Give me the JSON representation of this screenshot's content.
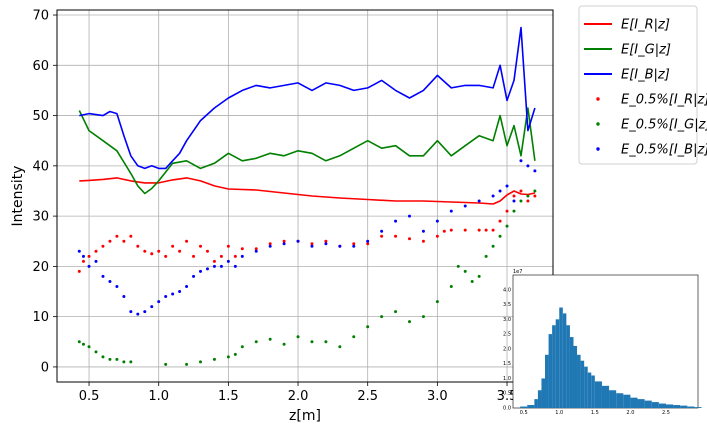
{
  "chart_data": {
    "type": "line",
    "xlabel": "z[m]",
    "ylabel": "Intensity",
    "xlim": [
      0.27,
      3.83
    ],
    "ylim": [
      -3,
      71
    ],
    "xticks": [
      "0.5",
      "1.0",
      "1.5",
      "2.0",
      "2.5",
      "3.0",
      "3.5"
    ],
    "yticks": [
      "0",
      "10",
      "20",
      "30",
      "40",
      "50",
      "60",
      "70"
    ],
    "grid": true,
    "legend_position": "outside-top-right",
    "colors": {
      "red": "#ff0000",
      "green": "#008000",
      "blue": "#0000ff",
      "grid": "#b0b0b0",
      "hist": "#1f77b4"
    },
    "series": [
      {
        "name": "E[I_R|z]",
        "kind": "line",
        "color": "#ff0000",
        "points": [
          [
            0.43,
            37.0
          ],
          [
            0.5,
            37.1
          ],
          [
            0.6,
            37.3
          ],
          [
            0.7,
            37.6
          ],
          [
            0.8,
            37.0
          ],
          [
            0.9,
            36.6
          ],
          [
            1.0,
            36.6
          ],
          [
            1.1,
            37.2
          ],
          [
            1.2,
            37.6
          ],
          [
            1.3,
            37.0
          ],
          [
            1.4,
            36.0
          ],
          [
            1.5,
            35.4
          ],
          [
            1.7,
            35.2
          ],
          [
            1.9,
            34.6
          ],
          [
            2.1,
            34.0
          ],
          [
            2.3,
            33.6
          ],
          [
            2.5,
            33.3
          ],
          [
            2.7,
            33.0
          ],
          [
            2.9,
            33.0
          ],
          [
            3.1,
            32.8
          ],
          [
            3.3,
            32.6
          ],
          [
            3.4,
            32.4
          ],
          [
            3.45,
            33.0
          ],
          [
            3.5,
            34.2
          ],
          [
            3.55,
            35.0
          ],
          [
            3.6,
            34.4
          ],
          [
            3.65,
            34.3
          ],
          [
            3.7,
            34.6
          ]
        ]
      },
      {
        "name": "E[I_G|z]",
        "kind": "line",
        "color": "#008000",
        "points": [
          [
            0.43,
            51.0
          ],
          [
            0.5,
            47.0
          ],
          [
            0.6,
            45.0
          ],
          [
            0.7,
            43.0
          ],
          [
            0.8,
            38.5
          ],
          [
            0.85,
            36.0
          ],
          [
            0.9,
            34.5
          ],
          [
            0.95,
            35.5
          ],
          [
            1.0,
            37.0
          ],
          [
            1.1,
            40.5
          ],
          [
            1.2,
            41.0
          ],
          [
            1.3,
            39.5
          ],
          [
            1.4,
            40.5
          ],
          [
            1.5,
            42.5
          ],
          [
            1.6,
            41.0
          ],
          [
            1.7,
            41.5
          ],
          [
            1.8,
            42.5
          ],
          [
            1.9,
            42.0
          ],
          [
            2.0,
            43.0
          ],
          [
            2.1,
            42.5
          ],
          [
            2.2,
            41.0
          ],
          [
            2.3,
            42.0
          ],
          [
            2.4,
            43.5
          ],
          [
            2.5,
            45.0
          ],
          [
            2.6,
            43.5
          ],
          [
            2.7,
            44.0
          ],
          [
            2.8,
            42.0
          ],
          [
            2.9,
            42.0
          ],
          [
            3.0,
            45.0
          ],
          [
            3.1,
            42.0
          ],
          [
            3.2,
            44.0
          ],
          [
            3.3,
            46.0
          ],
          [
            3.4,
            45.0
          ],
          [
            3.45,
            50.0
          ],
          [
            3.5,
            44.0
          ],
          [
            3.55,
            48.0
          ],
          [
            3.6,
            42.0
          ],
          [
            3.65,
            51.5
          ],
          [
            3.7,
            41.0
          ]
        ]
      },
      {
        "name": "E[I_B|z]",
        "kind": "line",
        "color": "#0000ff",
        "points": [
          [
            0.43,
            50.0
          ],
          [
            0.5,
            50.4
          ],
          [
            0.6,
            50.0
          ],
          [
            0.65,
            50.8
          ],
          [
            0.7,
            50.4
          ],
          [
            0.75,
            46.0
          ],
          [
            0.8,
            42.0
          ],
          [
            0.85,
            40.0
          ],
          [
            0.9,
            39.5
          ],
          [
            0.95,
            40.0
          ],
          [
            1.0,
            39.5
          ],
          [
            1.05,
            39.5
          ],
          [
            1.1,
            41.0
          ],
          [
            1.15,
            42.5
          ],
          [
            1.2,
            45.0
          ],
          [
            1.3,
            49.0
          ],
          [
            1.4,
            51.5
          ],
          [
            1.5,
            53.5
          ],
          [
            1.6,
            55.0
          ],
          [
            1.7,
            56.0
          ],
          [
            1.8,
            55.5
          ],
          [
            1.9,
            56.0
          ],
          [
            2.0,
            56.5
          ],
          [
            2.1,
            55.0
          ],
          [
            2.2,
            56.5
          ],
          [
            2.3,
            56.0
          ],
          [
            2.4,
            55.0
          ],
          [
            2.5,
            55.5
          ],
          [
            2.6,
            57.0
          ],
          [
            2.7,
            55.0
          ],
          [
            2.8,
            53.5
          ],
          [
            2.9,
            55.0
          ],
          [
            3.0,
            58.0
          ],
          [
            3.1,
            55.5
          ],
          [
            3.2,
            56.0
          ],
          [
            3.3,
            56.0
          ],
          [
            3.4,
            55.5
          ],
          [
            3.45,
            60.0
          ],
          [
            3.5,
            53.0
          ],
          [
            3.55,
            57.0
          ],
          [
            3.6,
            67.5
          ],
          [
            3.65,
            47.0
          ],
          [
            3.7,
            51.5
          ]
        ]
      },
      {
        "name": "E_0.5%[I_R|z]",
        "kind": "scatter",
        "color": "#ff0000",
        "points": [
          [
            0.43,
            19
          ],
          [
            0.46,
            21
          ],
          [
            0.5,
            22
          ],
          [
            0.55,
            23
          ],
          [
            0.6,
            24
          ],
          [
            0.65,
            25
          ],
          [
            0.7,
            26
          ],
          [
            0.75,
            25
          ],
          [
            0.8,
            26
          ],
          [
            0.85,
            24
          ],
          [
            0.9,
            23
          ],
          [
            0.95,
            22.5
          ],
          [
            1.0,
            23
          ],
          [
            1.05,
            22
          ],
          [
            1.1,
            24
          ],
          [
            1.15,
            23
          ],
          [
            1.2,
            25
          ],
          [
            1.25,
            22
          ],
          [
            1.3,
            24
          ],
          [
            1.35,
            23
          ],
          [
            1.4,
            21
          ],
          [
            1.45,
            22
          ],
          [
            1.5,
            24
          ],
          [
            1.55,
            22
          ],
          [
            1.6,
            23.5
          ],
          [
            1.7,
            23.5
          ],
          [
            1.8,
            24.5
          ],
          [
            1.9,
            25
          ],
          [
            2.0,
            25
          ],
          [
            2.1,
            24.5
          ],
          [
            2.2,
            25
          ],
          [
            2.3,
            24
          ],
          [
            2.4,
            24.5
          ],
          [
            2.5,
            24.5
          ],
          [
            2.6,
            26
          ],
          [
            2.7,
            26
          ],
          [
            2.8,
            25.5
          ],
          [
            2.9,
            25
          ],
          [
            3.0,
            26
          ],
          [
            3.05,
            27
          ],
          [
            3.1,
            27.2
          ],
          [
            3.2,
            27.2
          ],
          [
            3.3,
            27.2
          ],
          [
            3.35,
            27.2
          ],
          [
            3.4,
            27.2
          ],
          [
            3.45,
            29
          ],
          [
            3.5,
            31
          ],
          [
            3.55,
            34
          ],
          [
            3.6,
            35
          ],
          [
            3.65,
            33
          ],
          [
            3.7,
            34
          ]
        ]
      },
      {
        "name": "E_0.5%[I_G|z]",
        "kind": "scatter",
        "color": "#008000",
        "points": [
          [
            0.43,
            5
          ],
          [
            0.46,
            4.5
          ],
          [
            0.5,
            4
          ],
          [
            0.55,
            3
          ],
          [
            0.6,
            2
          ],
          [
            0.65,
            1.5
          ],
          [
            0.7,
            1.5
          ],
          [
            0.75,
            1
          ],
          [
            0.8,
            1
          ],
          [
            1.05,
            0.5
          ],
          [
            1.2,
            0.5
          ],
          [
            1.3,
            1
          ],
          [
            1.4,
            1.5
          ],
          [
            1.5,
            2
          ],
          [
            1.55,
            2.5
          ],
          [
            1.6,
            4
          ],
          [
            1.7,
            5
          ],
          [
            1.8,
            5.5
          ],
          [
            1.9,
            4.5
          ],
          [
            2.0,
            6
          ],
          [
            2.1,
            5
          ],
          [
            2.2,
            5
          ],
          [
            2.3,
            4
          ],
          [
            2.4,
            6
          ],
          [
            2.5,
            8
          ],
          [
            2.6,
            10
          ],
          [
            2.7,
            11
          ],
          [
            2.8,
            9
          ],
          [
            2.9,
            10
          ],
          [
            3.0,
            13
          ],
          [
            3.1,
            16
          ],
          [
            3.15,
            20
          ],
          [
            3.2,
            19
          ],
          [
            3.25,
            17
          ],
          [
            3.3,
            18
          ],
          [
            3.35,
            22
          ],
          [
            3.4,
            24
          ],
          [
            3.45,
            26
          ],
          [
            3.5,
            28
          ],
          [
            3.55,
            31
          ],
          [
            3.6,
            33
          ],
          [
            3.65,
            34
          ],
          [
            3.7,
            35
          ]
        ]
      },
      {
        "name": "E_0.5%[I_B|z]",
        "kind": "scatter",
        "color": "#0000ff",
        "points": [
          [
            0.43,
            23
          ],
          [
            0.46,
            22
          ],
          [
            0.5,
            20
          ],
          [
            0.55,
            21
          ],
          [
            0.6,
            18
          ],
          [
            0.65,
            17
          ],
          [
            0.7,
            16
          ],
          [
            0.75,
            14
          ],
          [
            0.8,
            11
          ],
          [
            0.85,
            10.5
          ],
          [
            0.9,
            11
          ],
          [
            0.95,
            12
          ],
          [
            1.0,
            13
          ],
          [
            1.05,
            14
          ],
          [
            1.1,
            14.5
          ],
          [
            1.15,
            15
          ],
          [
            1.2,
            16
          ],
          [
            1.25,
            18
          ],
          [
            1.3,
            19
          ],
          [
            1.35,
            19.5
          ],
          [
            1.4,
            20
          ],
          [
            1.45,
            20
          ],
          [
            1.5,
            21
          ],
          [
            1.55,
            20
          ],
          [
            1.6,
            22
          ],
          [
            1.7,
            23
          ],
          [
            1.8,
            24
          ],
          [
            1.9,
            24.5
          ],
          [
            2.0,
            25
          ],
          [
            2.1,
            24
          ],
          [
            2.2,
            24.5
          ],
          [
            2.3,
            24
          ],
          [
            2.4,
            24
          ],
          [
            2.5,
            25
          ],
          [
            2.6,
            27
          ],
          [
            2.7,
            29
          ],
          [
            2.8,
            30
          ],
          [
            2.9,
            27
          ],
          [
            3.0,
            29
          ],
          [
            3.1,
            31
          ],
          [
            3.2,
            32
          ],
          [
            3.3,
            33
          ],
          [
            3.4,
            34
          ],
          [
            3.45,
            35
          ],
          [
            3.5,
            36
          ],
          [
            3.55,
            33
          ],
          [
            3.6,
            41
          ],
          [
            3.65,
            40
          ],
          [
            3.7,
            39
          ]
        ]
      }
    ],
    "inset": {
      "type": "histogram",
      "color": "#1f77b4",
      "xticks": [
        "0.5",
        "1.0",
        "1.5",
        "2.0",
        "2.5"
      ],
      "yticks": [
        "0.0",
        "0.5",
        "1.0",
        "1.5",
        "2.0",
        "2.5",
        "3.0",
        "3.5",
        "4.0"
      ],
      "ylim": [
        0,
        4.5
      ],
      "xlim": [
        0.35,
        2.95
      ],
      "multiplier": "1e7",
      "bins_x": [
        0.45,
        0.55,
        0.65,
        0.7,
        0.75,
        0.8,
        0.85,
        0.9,
        0.95,
        1.0,
        1.05,
        1.1,
        1.15,
        1.2,
        1.25,
        1.3,
        1.35,
        1.4,
        1.45,
        1.5,
        1.6,
        1.7,
        1.8,
        1.9,
        2.0,
        2.1,
        2.2,
        2.3,
        2.4,
        2.5,
        2.6,
        2.7,
        2.8,
        2.9
      ],
      "bins_y": [
        0.05,
        0.1,
        0.3,
        0.6,
        1.0,
        1.8,
        2.5,
        2.8,
        3.0,
        3.4,
        3.2,
        2.8,
        2.4,
        2.1,
        1.8,
        1.6,
        1.4,
        1.2,
        1.1,
        0.9,
        0.75,
        0.6,
        0.5,
        0.45,
        0.35,
        0.3,
        0.25,
        0.2,
        0.15,
        0.12,
        0.1,
        0.08,
        0.05,
        0.03
      ]
    }
  },
  "legend": {
    "items": [
      {
        "label": "E[I_R|z]",
        "sym": "line",
        "color": "#ff0000"
      },
      {
        "label": "E[I_G|z]",
        "sym": "line",
        "color": "#008000"
      },
      {
        "label": "E[I_B|z]",
        "sym": "line",
        "color": "#0000ff"
      },
      {
        "label": "E_0.5%[I_R|z]",
        "sym": "dot",
        "color": "#ff0000"
      },
      {
        "label": "E_0.5%[I_G|z]",
        "sym": "dot",
        "color": "#008000"
      },
      {
        "label": "E_0.5%[I_B|z]",
        "sym": "dot",
        "color": "#0000ff"
      }
    ]
  }
}
